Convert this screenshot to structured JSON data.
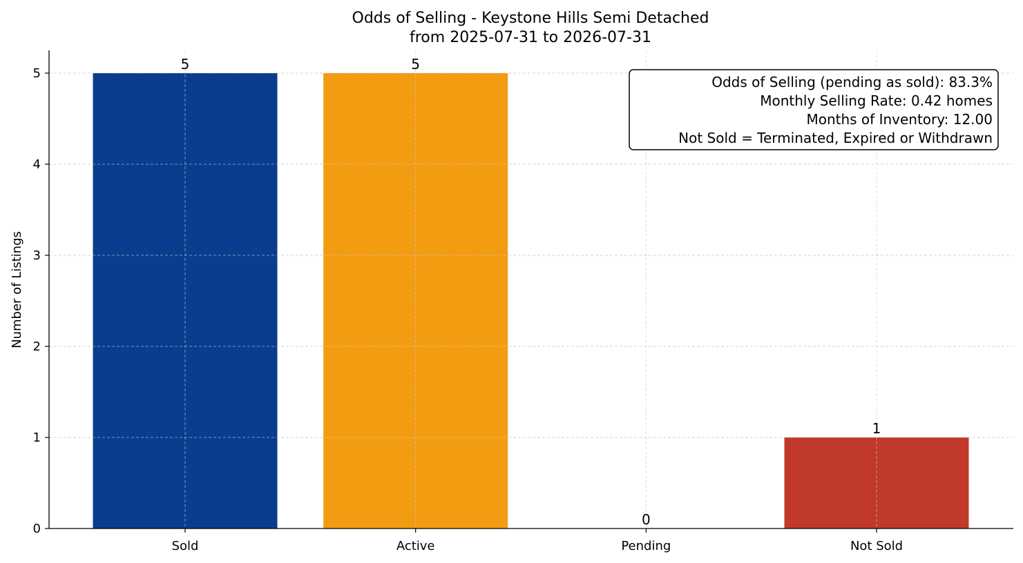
{
  "chart_data": {
    "type": "bar",
    "title": "Odds of Selling - Keystone Hills Semi Detached",
    "subtitle": "from 2025-07-31 to 2026-07-31",
    "xlabel": "",
    "ylabel": "Number of Listings",
    "categories": [
      "Sold",
      "Active",
      "Pending",
      "Not Sold"
    ],
    "values": [
      5,
      5,
      0,
      1
    ],
    "data_labels": [
      "5",
      "5",
      "0",
      "1"
    ],
    "colors": [
      "#0b3d8e",
      "#f39c12",
      "#7f7f7f",
      "#c0392b"
    ],
    "ylim": [
      0,
      5.25
    ],
    "yticks": [
      0,
      1,
      2,
      3,
      4,
      5
    ],
    "grid": true,
    "legend": "none",
    "info_box": {
      "placement": "top-right",
      "lines": [
        "Odds of Selling (pending as sold): 83.3%",
        "Monthly Selling Rate: 0.42 homes",
        "Months of Inventory: 12.00",
        "Not Sold = Terminated, Expired or Withdrawn"
      ]
    }
  }
}
